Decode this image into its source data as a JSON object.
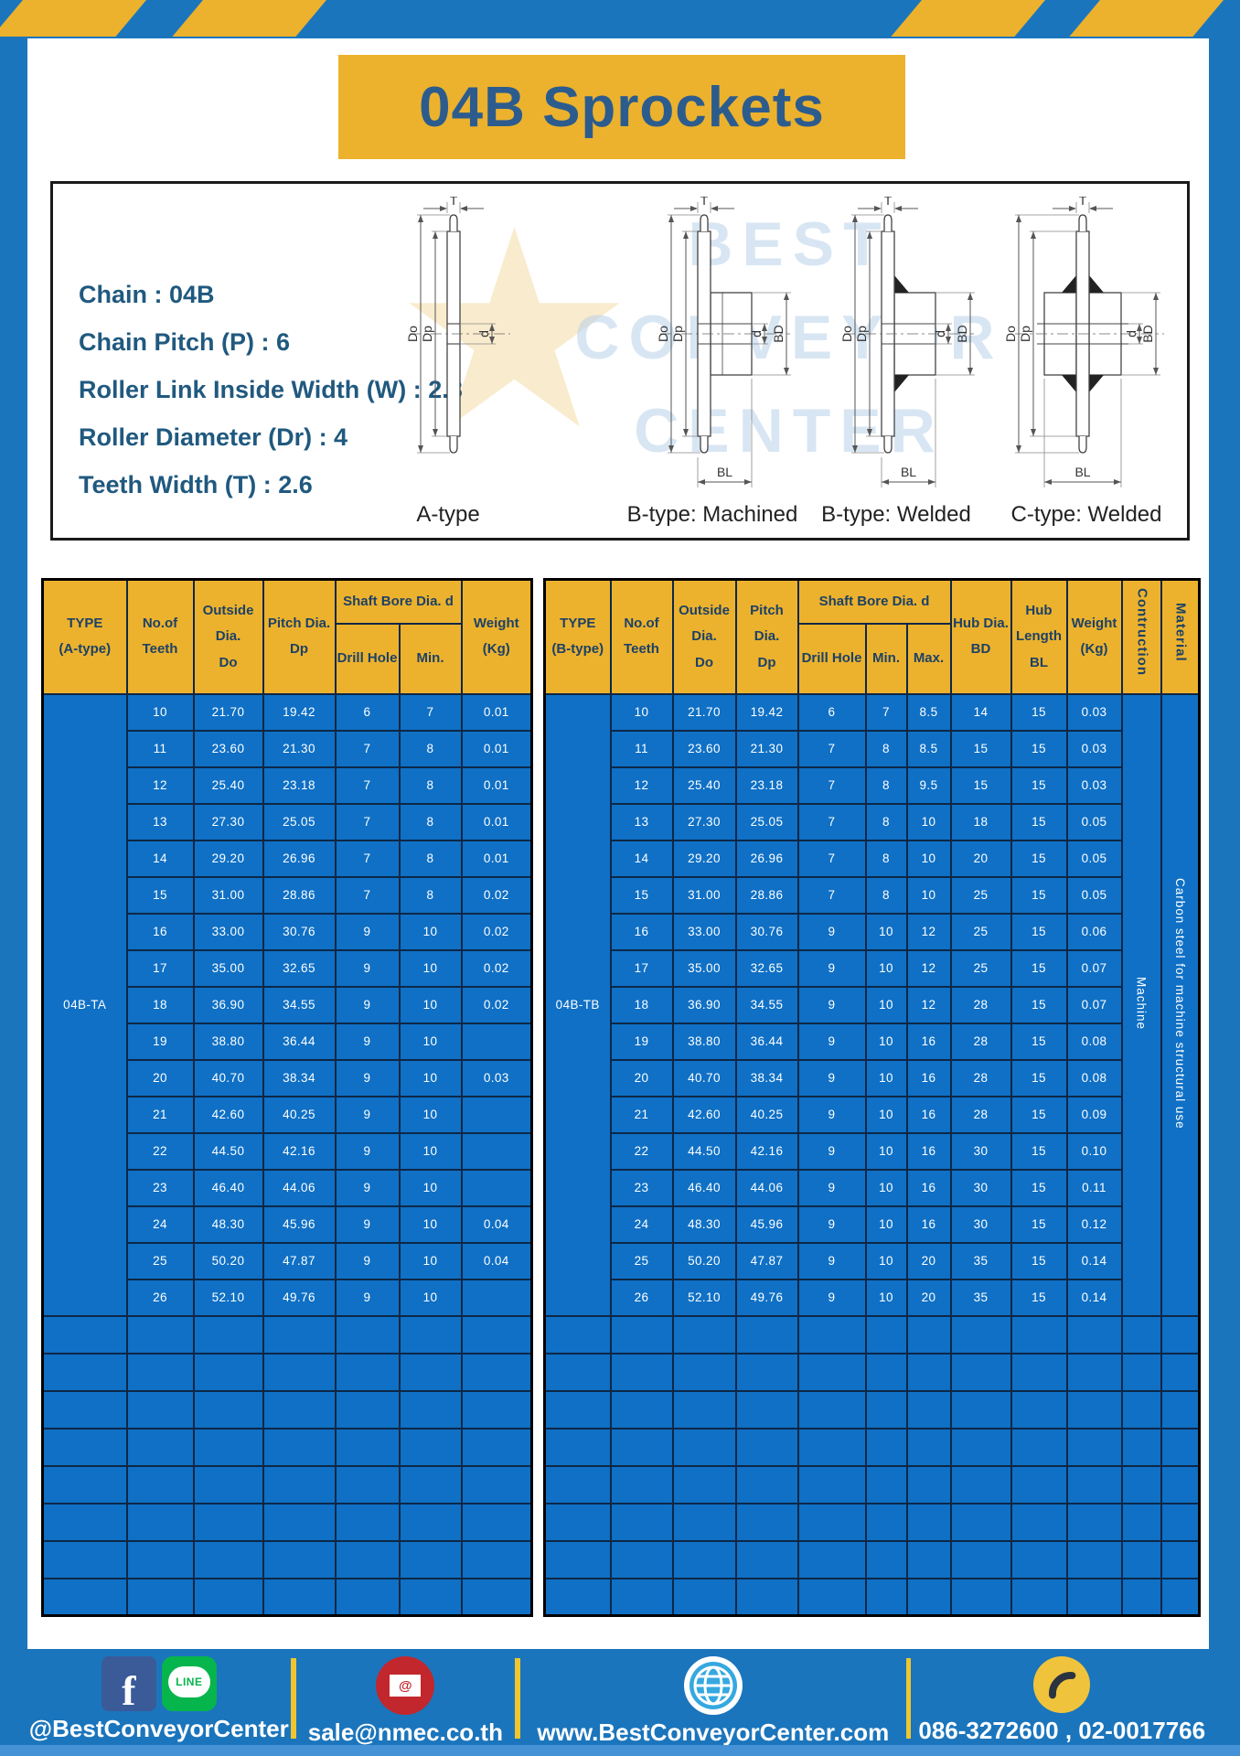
{
  "title": "04B Sprockets",
  "specs": {
    "lines": [
      "Chain : 04B",
      "Chain Pitch (P) : 6",
      "Roller Link Inside Width (W) : 2.8",
      "Roller Diameter (Dr) : 4",
      "Teeth Width (T) : 2.6"
    ]
  },
  "diagram": {
    "dims": {
      "t": "T",
      "do": "Do",
      "dp": "Dp",
      "d": "d",
      "bd": "BD",
      "bl": "BL"
    },
    "labels": [
      "A-type",
      "B-type: Machined",
      "B-type: Welded",
      "C-type: Welded"
    ],
    "watermark": "BEST\nCONVEYOR\nCENTER"
  },
  "colors": {
    "frame_blue": "#1b75bc",
    "accent_yellow": "#ecb22d",
    "cell_blue": "#0f70c5",
    "header_text": "#1d4166"
  },
  "tables": {
    "left": {
      "header": {
        "type": "TYPE\n(A-type)",
        "teeth": "No.of\nTeeth",
        "outside": "Outside\nDia.\nDo",
        "pitch": "Pitch Dia.\nDp",
        "shaft": "Shaft Bore Dia. d",
        "drill": "Drill Hole",
        "min": "Min.",
        "weight": "Weight\n(Kg)"
      },
      "type_value": "04B-TA",
      "rows": [
        [
          "10",
          "21.70",
          "19.42",
          "6",
          "7",
          "0.01"
        ],
        [
          "11",
          "23.60",
          "21.30",
          "7",
          "8",
          "0.01"
        ],
        [
          "12",
          "25.40",
          "23.18",
          "7",
          "8",
          "0.01"
        ],
        [
          "13",
          "27.30",
          "25.05",
          "7",
          "8",
          "0.01"
        ],
        [
          "14",
          "29.20",
          "26.96",
          "7",
          "8",
          "0.01"
        ],
        [
          "15",
          "31.00",
          "28.86",
          "7",
          "8",
          "0.02"
        ],
        [
          "16",
          "33.00",
          "30.76",
          "9",
          "10",
          "0.02"
        ],
        [
          "17",
          "35.00",
          "32.65",
          "9",
          "10",
          "0.02"
        ],
        [
          "18",
          "36.90",
          "34.55",
          "9",
          "10",
          "0.02"
        ],
        [
          "19",
          "38.80",
          "36.44",
          "9",
          "10",
          ""
        ],
        [
          "20",
          "40.70",
          "38.34",
          "9",
          "10",
          "0.03"
        ],
        [
          "21",
          "42.60",
          "40.25",
          "9",
          "10",
          ""
        ],
        [
          "22",
          "44.50",
          "42.16",
          "9",
          "10",
          ""
        ],
        [
          "23",
          "46.40",
          "44.06",
          "9",
          "10",
          ""
        ],
        [
          "24",
          "48.30",
          "45.96",
          "9",
          "10",
          "0.04"
        ],
        [
          "25",
          "50.20",
          "47.87",
          "9",
          "10",
          "0.04"
        ],
        [
          "26",
          "52.10",
          "49.76",
          "9",
          "10",
          ""
        ]
      ],
      "empty_rows": 8
    },
    "right": {
      "header": {
        "type": "TYPE\n(B-type)",
        "teeth": "No.of\nTeeth",
        "outside": "Outside\nDia.\nDo",
        "pitch": "Pitch Dia.\nDp",
        "shaft": "Shaft Bore Dia. d",
        "drill": "Drill Hole",
        "min": "Min.",
        "max": "Max.",
        "hub_dia": "Hub Dia.\nBD",
        "hub_len": "Hub\nLength\nBL",
        "weight": "Weight\n(Kg)",
        "construction": "Contruction",
        "material": "Material"
      },
      "type_value": "04B-TB",
      "construction_value": "Machine",
      "material_value": "Carbon steel for machine structural use",
      "rows": [
        [
          "10",
          "21.70",
          "19.42",
          "6",
          "7",
          "8.5",
          "14",
          "15",
          "0.03"
        ],
        [
          "11",
          "23.60",
          "21.30",
          "7",
          "8",
          "8.5",
          "15",
          "15",
          "0.03"
        ],
        [
          "12",
          "25.40",
          "23.18",
          "7",
          "8",
          "9.5",
          "15",
          "15",
          "0.03"
        ],
        [
          "13",
          "27.30",
          "25.05",
          "7",
          "8",
          "10",
          "18",
          "15",
          "0.05"
        ],
        [
          "14",
          "29.20",
          "26.96",
          "7",
          "8",
          "10",
          "20",
          "15",
          "0.05"
        ],
        [
          "15",
          "31.00",
          "28.86",
          "7",
          "8",
          "10",
          "25",
          "15",
          "0.05"
        ],
        [
          "16",
          "33.00",
          "30.76",
          "9",
          "10",
          "12",
          "25",
          "15",
          "0.06"
        ],
        [
          "17",
          "35.00",
          "32.65",
          "9",
          "10",
          "12",
          "25",
          "15",
          "0.07"
        ],
        [
          "18",
          "36.90",
          "34.55",
          "9",
          "10",
          "12",
          "28",
          "15",
          "0.07"
        ],
        [
          "19",
          "38.80",
          "36.44",
          "9",
          "10",
          "16",
          "28",
          "15",
          "0.08"
        ],
        [
          "20",
          "40.70",
          "38.34",
          "9",
          "10",
          "16",
          "28",
          "15",
          "0.08"
        ],
        [
          "21",
          "42.60",
          "40.25",
          "9",
          "10",
          "16",
          "28",
          "15",
          "0.09"
        ],
        [
          "22",
          "44.50",
          "42.16",
          "9",
          "10",
          "16",
          "30",
          "15",
          "0.10"
        ],
        [
          "23",
          "46.40",
          "44.06",
          "9",
          "10",
          "16",
          "30",
          "15",
          "0.11"
        ],
        [
          "24",
          "48.30",
          "45.96",
          "9",
          "10",
          "16",
          "30",
          "15",
          "0.12"
        ],
        [
          "25",
          "50.20",
          "47.87",
          "9",
          "10",
          "20",
          "35",
          "15",
          "0.14"
        ],
        [
          "26",
          "52.10",
          "49.76",
          "9",
          "10",
          "20",
          "35",
          "15",
          "0.14"
        ]
      ],
      "empty_rows": 8
    }
  },
  "footer": {
    "line_badge": "LINE",
    "sections": [
      {
        "label": "@BestConveyorCenter"
      },
      {
        "label": "sale@nmec.co.th"
      },
      {
        "label": "www.BestConveyorCenter.com"
      },
      {
        "label": "086-3272600 , 02-0017766"
      }
    ]
  }
}
